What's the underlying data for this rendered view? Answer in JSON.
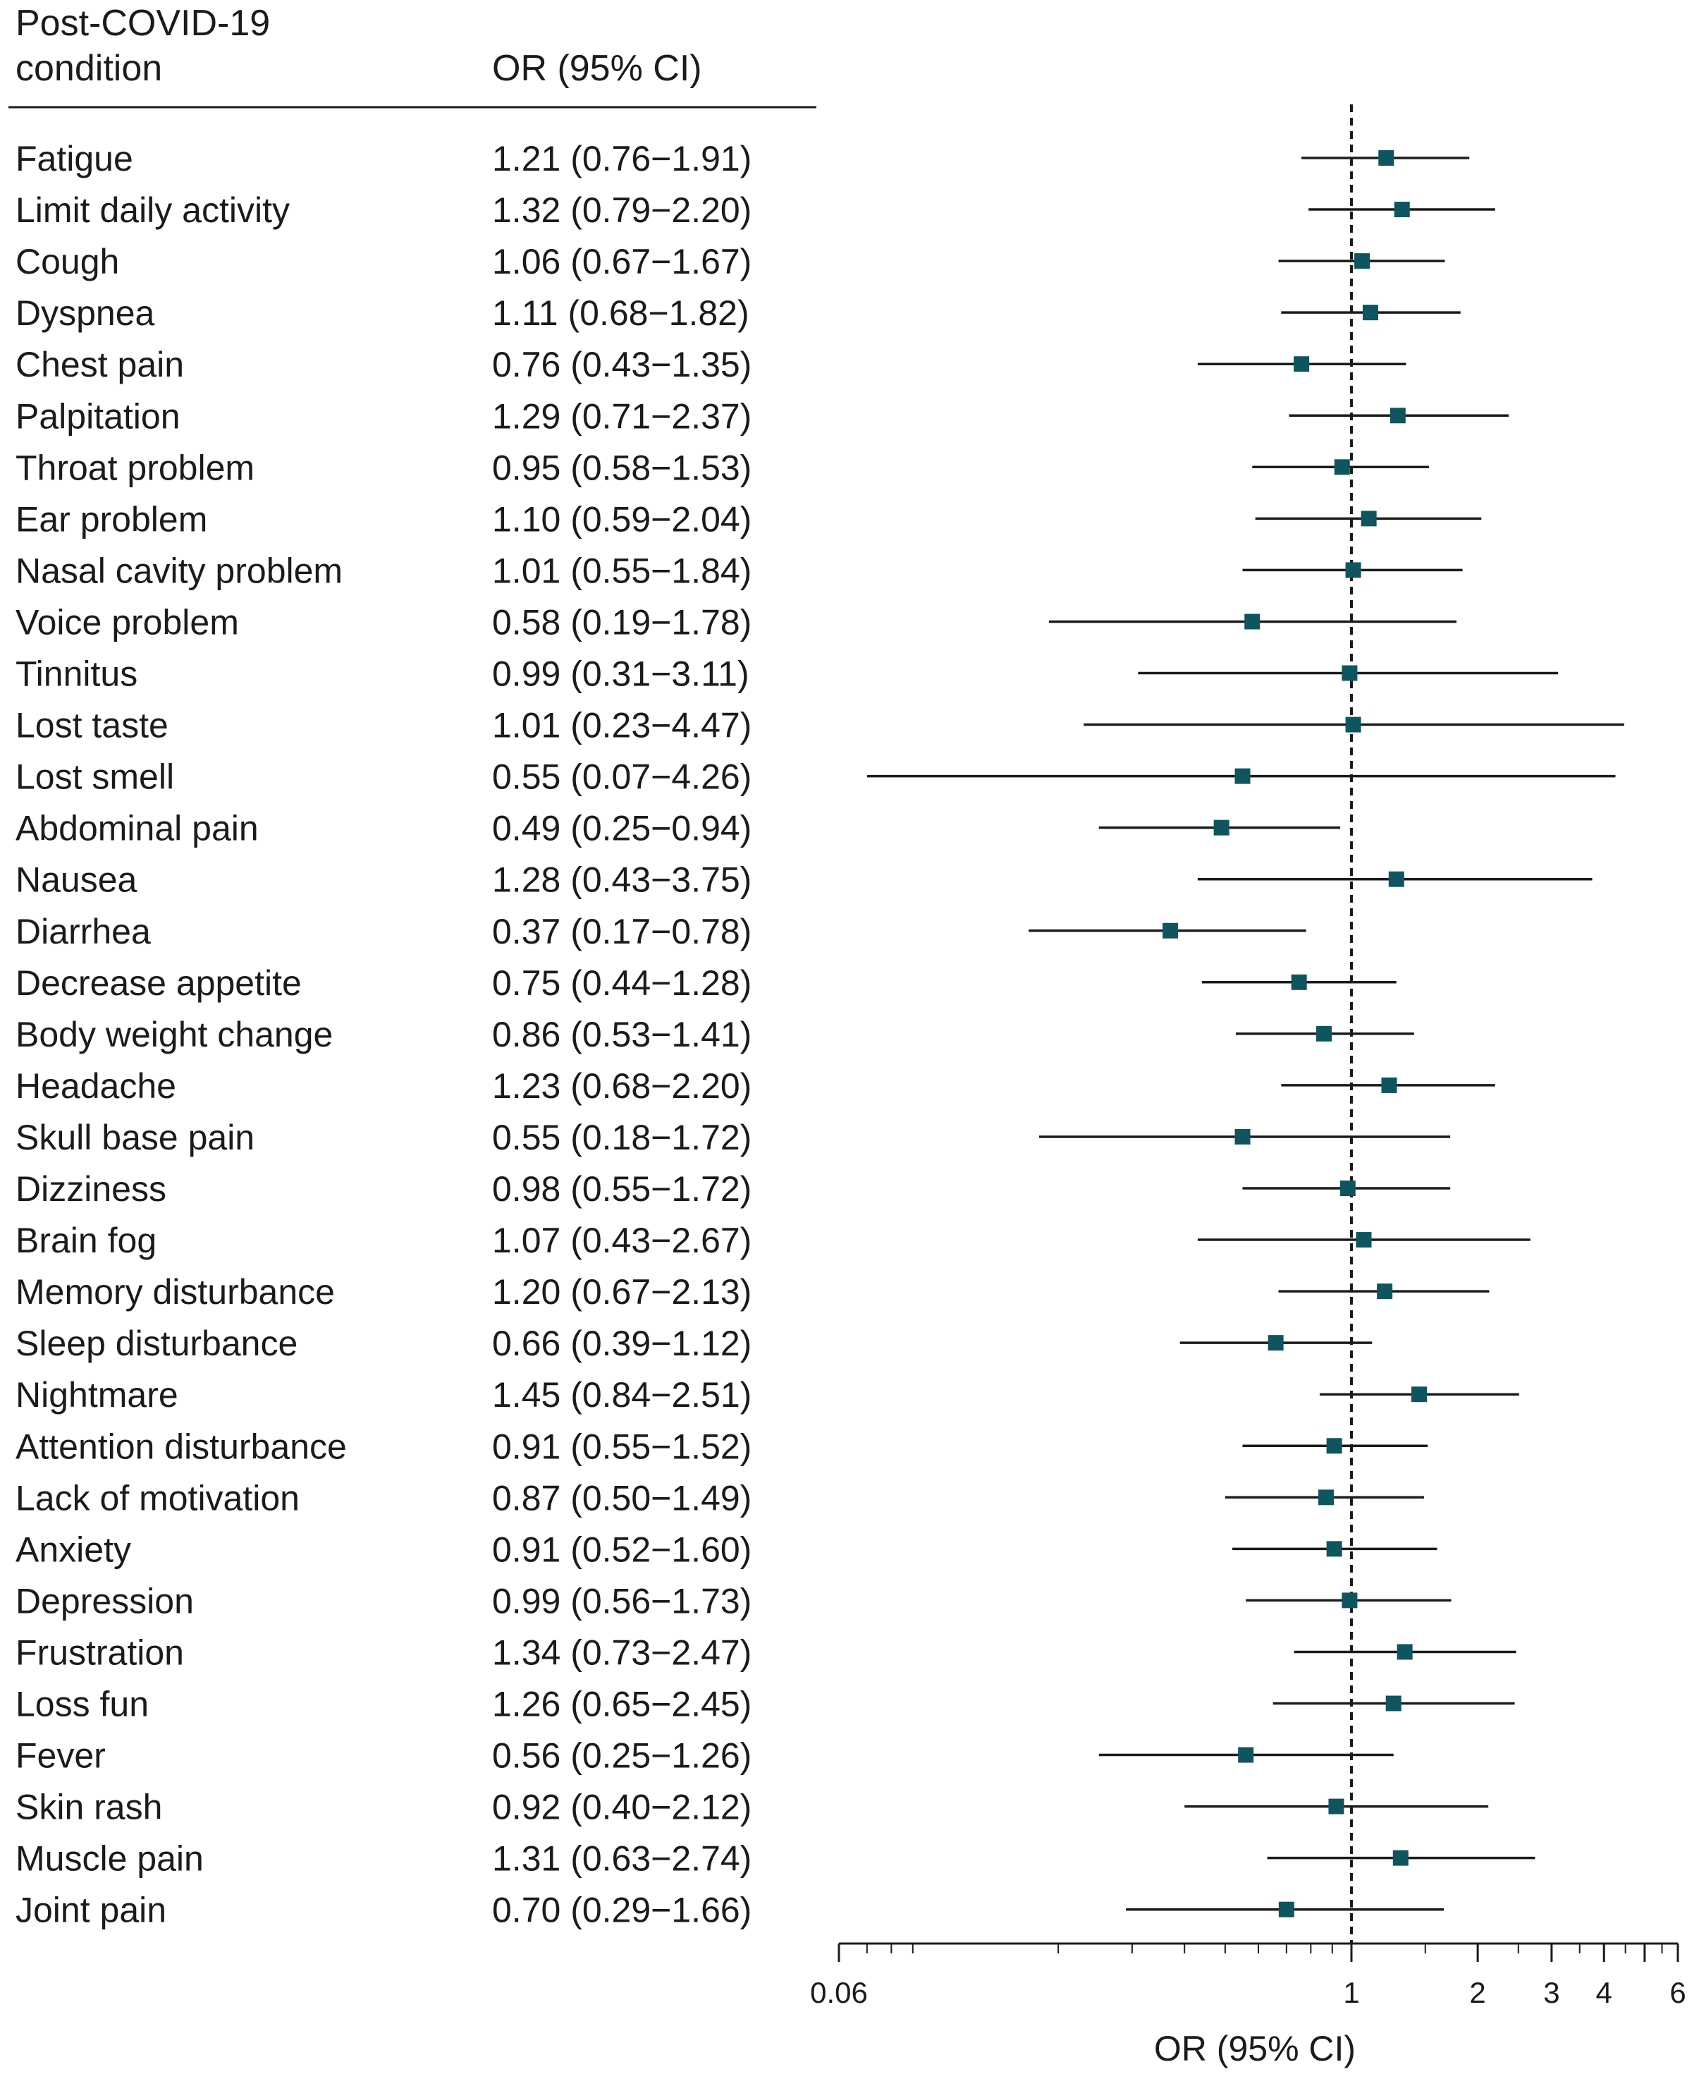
{
  "chart_data": {
    "type": "forest",
    "header": {
      "condition_line1": "Post-COVID-19",
      "condition_line2": "condition",
      "estimate": "OR (95% CI)"
    },
    "xlabel": "OR (95% CI)",
    "x_scale": "log",
    "xlim": [
      0.06,
      6
    ],
    "reference_line": 1,
    "x_ticks_labeled": [
      0.06,
      1,
      2,
      3,
      4,
      6
    ],
    "x_tick_labels": [
      "0.06",
      "1",
      "2",
      "3",
      "4",
      "6"
    ],
    "x_ticks_minor": [
      5
    ],
    "marker_color": "#0f5560",
    "rows": [
      {
        "label": "Fatigue",
        "text": "1.21 (0.76−1.91)",
        "or": 1.21,
        "lo": 0.76,
        "hi": 1.91
      },
      {
        "label": "Limit daily activity",
        "text": "1.32 (0.79−2.20)",
        "or": 1.32,
        "lo": 0.79,
        "hi": 2.2
      },
      {
        "label": "Cough",
        "text": "1.06 (0.67−1.67)",
        "or": 1.06,
        "lo": 0.67,
        "hi": 1.67
      },
      {
        "label": "Dyspnea",
        "text": "1.11 (0.68−1.82)",
        "or": 1.11,
        "lo": 0.68,
        "hi": 1.82
      },
      {
        "label": "Chest pain",
        "text": "0.76 (0.43−1.35)",
        "or": 0.76,
        "lo": 0.43,
        "hi": 1.35
      },
      {
        "label": "Palpitation",
        "text": "1.29 (0.71−2.37)",
        "or": 1.29,
        "lo": 0.71,
        "hi": 2.37
      },
      {
        "label": "Throat problem",
        "text": "0.95 (0.58−1.53)",
        "or": 0.95,
        "lo": 0.58,
        "hi": 1.53
      },
      {
        "label": "Ear problem",
        "text": "1.10 (0.59−2.04)",
        "or": 1.1,
        "lo": 0.59,
        "hi": 2.04
      },
      {
        "label": "Nasal cavity problem",
        "text": "1.01 (0.55−1.84)",
        "or": 1.01,
        "lo": 0.55,
        "hi": 1.84
      },
      {
        "label": "Voice problem",
        "text": "0.58 (0.19−1.78)",
        "or": 0.58,
        "lo": 0.19,
        "hi": 1.78
      },
      {
        "label": "Tinnitus",
        "text": "0.99 (0.31−3.11)",
        "or": 0.99,
        "lo": 0.31,
        "hi": 3.11
      },
      {
        "label": "Lost taste",
        "text": "1.01 (0.23−4.47)",
        "or": 1.01,
        "lo": 0.23,
        "hi": 4.47
      },
      {
        "label": "Lost smell",
        "text": "0.55 (0.07−4.26)",
        "or": 0.55,
        "lo": 0.07,
        "hi": 4.26
      },
      {
        "label": "Abdominal pain",
        "text": "0.49 (0.25−0.94)",
        "or": 0.49,
        "lo": 0.25,
        "hi": 0.94
      },
      {
        "label": "Nausea",
        "text": "1.28 (0.43−3.75)",
        "or": 1.28,
        "lo": 0.43,
        "hi": 3.75
      },
      {
        "label": "Diarrhea",
        "text": "0.37 (0.17−0.78)",
        "or": 0.37,
        "lo": 0.17,
        "hi": 0.78
      },
      {
        "label": "Decrease appetite",
        "text": "0.75 (0.44−1.28)",
        "or": 0.75,
        "lo": 0.44,
        "hi": 1.28
      },
      {
        "label": "Body weight change",
        "text": "0.86 (0.53−1.41)",
        "or": 0.86,
        "lo": 0.53,
        "hi": 1.41
      },
      {
        "label": "Headache",
        "text": "1.23 (0.68−2.20)",
        "or": 1.23,
        "lo": 0.68,
        "hi": 2.2
      },
      {
        "label": "Skull base pain",
        "text": "0.55 (0.18−1.72)",
        "or": 0.55,
        "lo": 0.18,
        "hi": 1.72
      },
      {
        "label": "Dizziness",
        "text": "0.98 (0.55−1.72)",
        "or": 0.98,
        "lo": 0.55,
        "hi": 1.72
      },
      {
        "label": "Brain fog",
        "text": "1.07 (0.43−2.67)",
        "or": 1.07,
        "lo": 0.43,
        "hi": 2.67
      },
      {
        "label": "Memory disturbance",
        "text": "1.20 (0.67−2.13)",
        "or": 1.2,
        "lo": 0.67,
        "hi": 2.13
      },
      {
        "label": "Sleep disturbance",
        "text": "0.66 (0.39−1.12)",
        "or": 0.66,
        "lo": 0.39,
        "hi": 1.12
      },
      {
        "label": "Nightmare",
        "text": "1.45 (0.84−2.51)",
        "or": 1.45,
        "lo": 0.84,
        "hi": 2.51
      },
      {
        "label": "Attention disturbance",
        "text": "0.91 (0.55−1.52)",
        "or": 0.91,
        "lo": 0.55,
        "hi": 1.52
      },
      {
        "label": "Lack of motivation",
        "text": "0.87 (0.50−1.49)",
        "or": 0.87,
        "lo": 0.5,
        "hi": 1.49
      },
      {
        "label": "Anxiety",
        "text": "0.91 (0.52−1.60)",
        "or": 0.91,
        "lo": 0.52,
        "hi": 1.6
      },
      {
        "label": "Depression",
        "text": "0.99 (0.56−1.73)",
        "or": 0.99,
        "lo": 0.56,
        "hi": 1.73
      },
      {
        "label": "Frustration",
        "text": "1.34 (0.73−2.47)",
        "or": 1.34,
        "lo": 0.73,
        "hi": 2.47
      },
      {
        "label": "Loss fun",
        "text": "1.26 (0.65−2.45)",
        "or": 1.26,
        "lo": 0.65,
        "hi": 2.45
      },
      {
        "label": "Fever",
        "text": "0.56 (0.25−1.26)",
        "or": 0.56,
        "lo": 0.25,
        "hi": 1.26
      },
      {
        "label": "Skin rash",
        "text": "0.92 (0.40−2.12)",
        "or": 0.92,
        "lo": 0.4,
        "hi": 2.12
      },
      {
        "label": "Muscle pain",
        "text": "1.31 (0.63−2.74)",
        "or": 1.31,
        "lo": 0.63,
        "hi": 2.74
      },
      {
        "label": "Joint pain",
        "text": "0.70 (0.29−1.66)",
        "or": 0.7,
        "lo": 0.29,
        "hi": 1.66
      }
    ]
  }
}
